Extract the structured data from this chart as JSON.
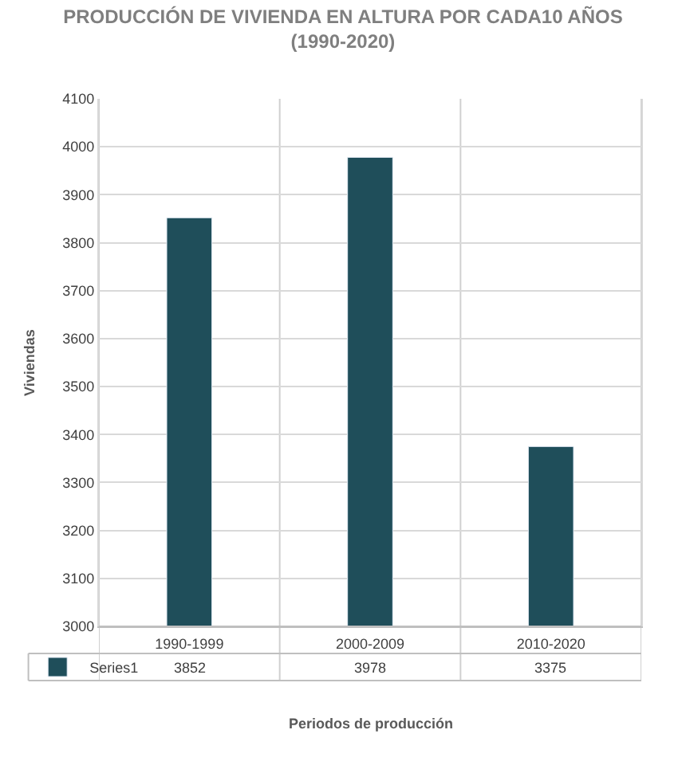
{
  "chart_data": {
    "type": "bar",
    "title": "PRODUCCIÓN DE VIVIENDA EN ALTURA POR CADA10 AÑOS (1990-2020)",
    "categories": [
      "1990-1999",
      "2000-2009",
      "2010-2020"
    ],
    "series": [
      {
        "name": "Series1",
        "color": "#1f4e5a",
        "values": [
          3852,
          3978,
          3375
        ]
      }
    ],
    "xlabel": "Periodos de producción",
    "ylabel": "Viviendas",
    "ylim": [
      3000,
      4100
    ],
    "yticks": [
      3000,
      3100,
      3200,
      3300,
      3400,
      3500,
      3600,
      3700,
      3800,
      3900,
      4000,
      4100
    ],
    "grid": "y",
    "legend": "bottom left",
    "data_labels": true
  }
}
